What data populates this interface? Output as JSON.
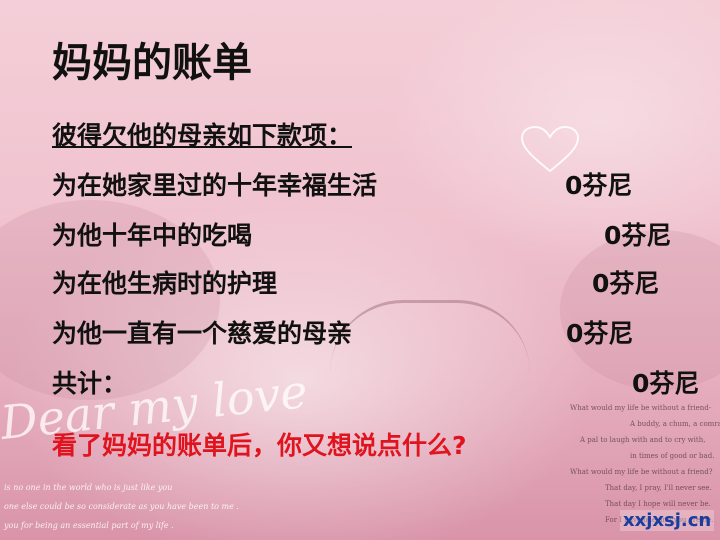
{
  "slide": {
    "title": "妈妈的账单",
    "subtitle": "彼得欠他的母亲如下款项：",
    "items": [
      {
        "label": "为在她家里过的十年幸福生活",
        "amount": "0芬尼"
      },
      {
        "label": "为他十年中的吃喝",
        "amount": "0芬尼"
      },
      {
        "label": "为在他生病时的护理",
        "amount": "0芬尼"
      },
      {
        "label": "为他一直有一个慈爱的母亲",
        "amount": "0芬尼"
      }
    ],
    "total": {
      "label": "共计：",
      "amount": "0芬尼"
    },
    "question": "看了妈妈的账单后，你又想说点什么?"
  },
  "background": {
    "script_text": "Dear my love",
    "poem_lines": [
      "What would my life be without a friend-",
      "A buddy, a chum, a comrade?",
      "A pal to laugh with and to cry with,",
      "in times of good or bad.",
      "What would my life be without a friend?",
      "That day, I pray, I'll never see.",
      "That day I hope will never be.",
      "For I have one and you are he."
    ],
    "bottom_lines": [
      "is no one in the world who is just like you",
      "one else could be so considerate as you have been to me .",
      "you for being an essential part of my life ."
    ],
    "watermark": "xxjxsj.cn"
  },
  "colors": {
    "text": "#111111",
    "question": "#e0141e",
    "watermark": "#1a3d9e"
  }
}
